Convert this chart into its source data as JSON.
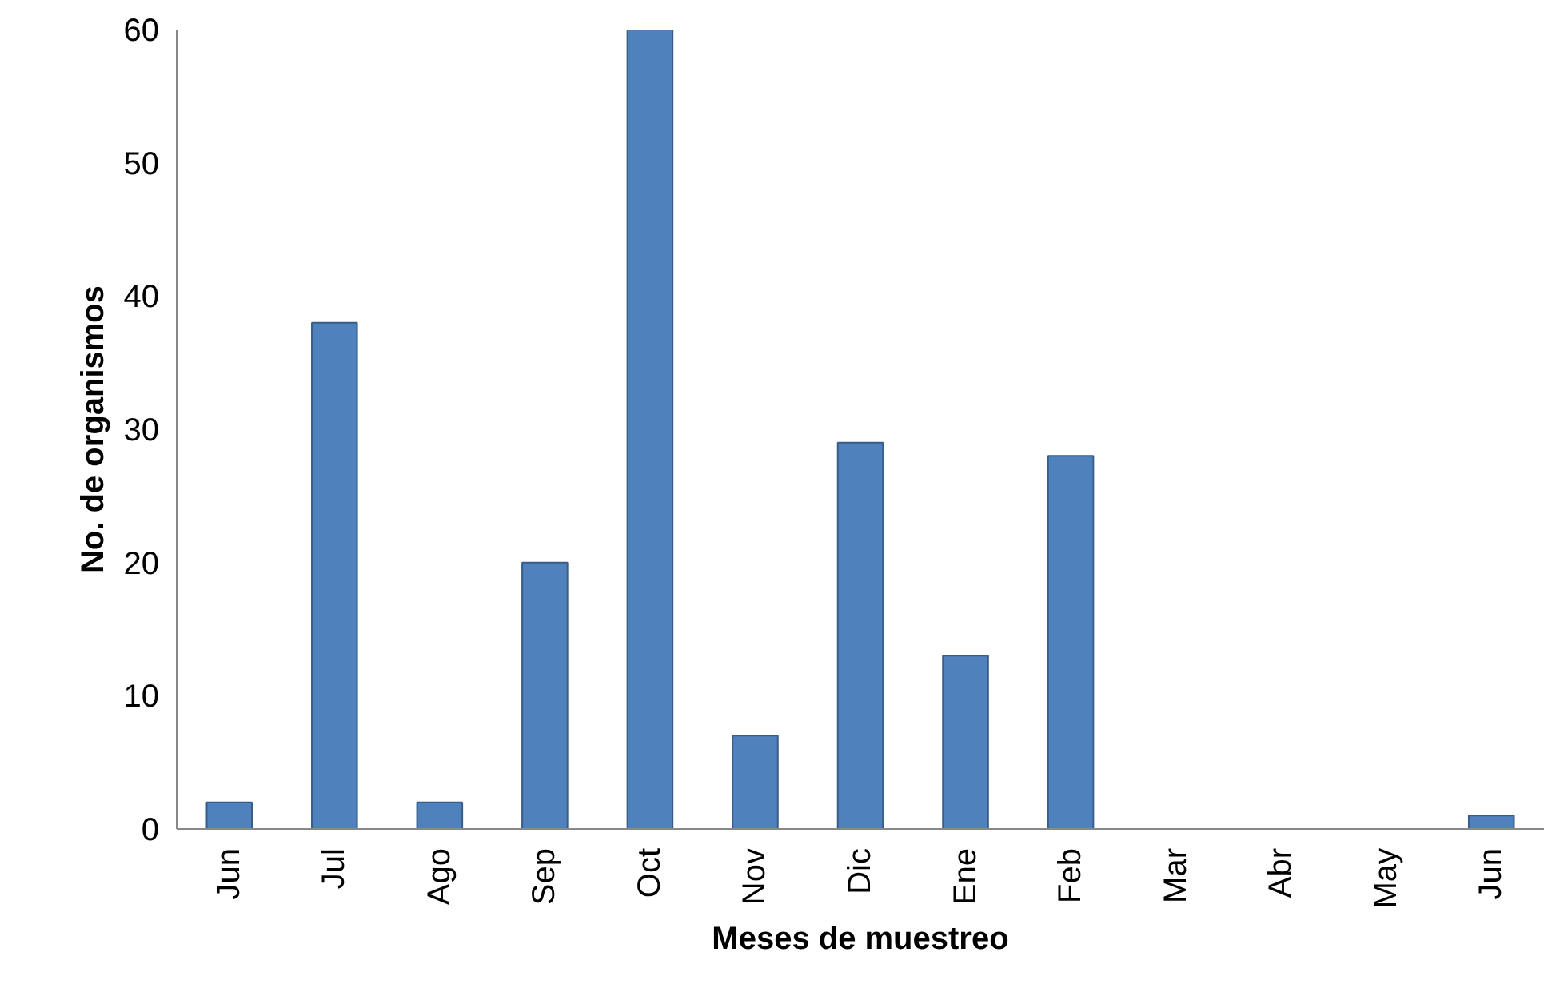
{
  "chart_data": {
    "type": "bar",
    "xlabel": "Meses de muestreo",
    "ylabel": "No. de organismos",
    "categories": [
      "Jun",
      "Jul",
      "Ago",
      "Sep",
      "Oct",
      "Nov",
      "Dic",
      "Ene",
      "Feb",
      "Mar",
      "Abr",
      "May",
      "Jun"
    ],
    "values": [
      2,
      38,
      2,
      20,
      60,
      7,
      29,
      13,
      28,
      0,
      0,
      0,
      1
    ],
    "color": "#4f81bd",
    "ylim": [
      0,
      60
    ],
    "yticks": [
      0,
      10,
      20,
      30,
      40,
      50,
      60
    ],
    "grid": false
  }
}
